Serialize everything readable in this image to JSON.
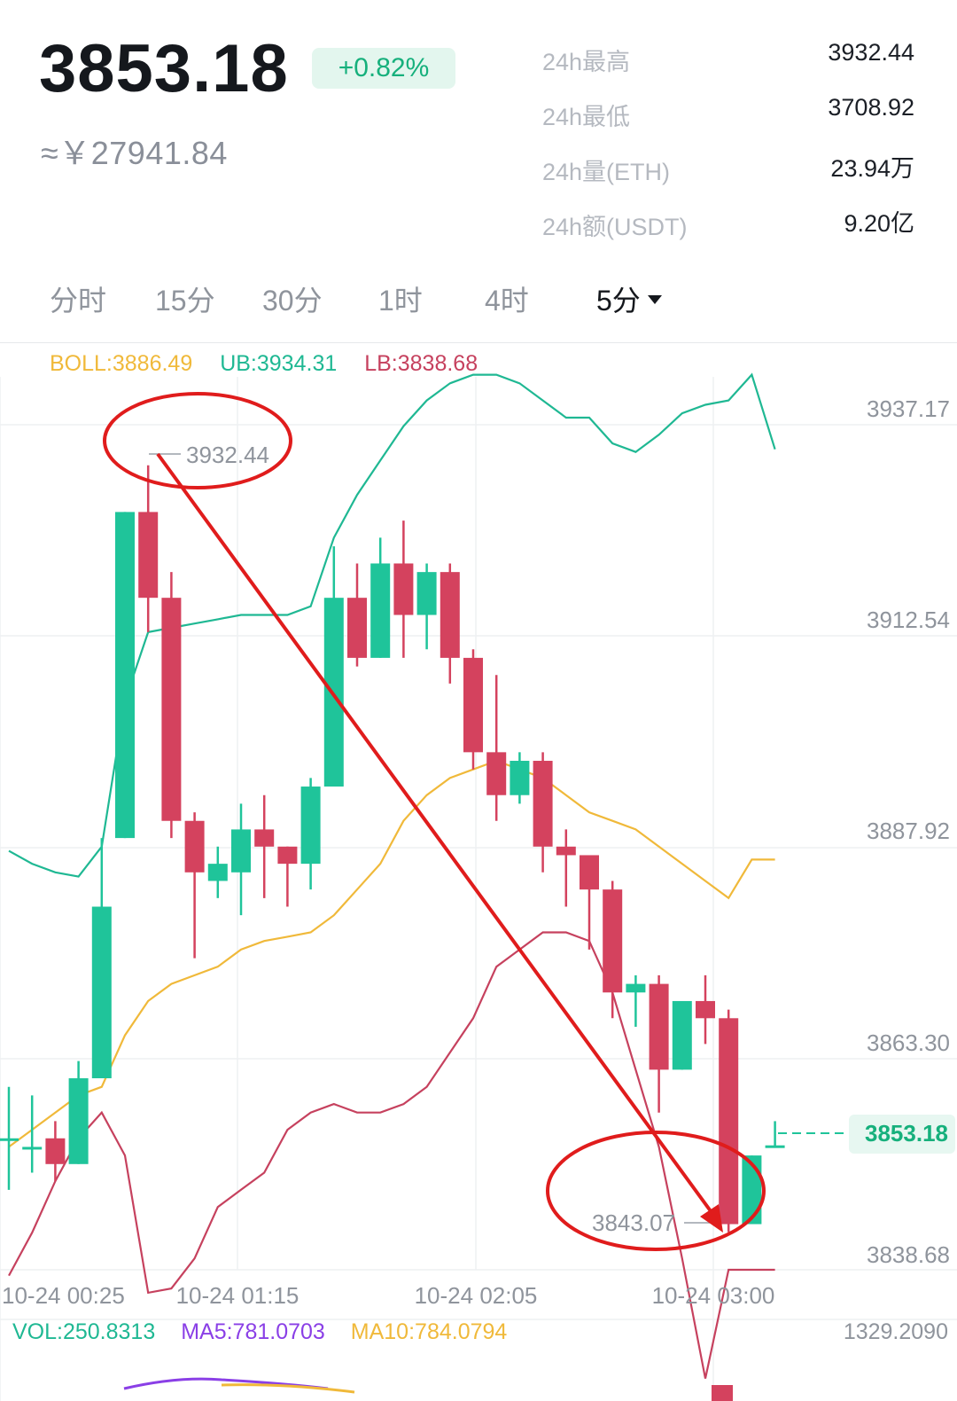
{
  "header": {
    "price": "3853.18",
    "change_pct": "+0.82%",
    "cny_equiv": "≈￥27941.84",
    "stats": [
      {
        "label": "24h最高",
        "value": "3932.44"
      },
      {
        "label": "24h最低",
        "value": "3708.92"
      },
      {
        "label": "24h量(ETH)",
        "value": "23.94万"
      },
      {
        "label": "24h额(USDT)",
        "value": "9.20亿"
      }
    ]
  },
  "tabs": [
    {
      "label": "分时"
    },
    {
      "label": "15分"
    },
    {
      "label": "30分"
    },
    {
      "label": "1时"
    },
    {
      "label": "4时"
    },
    {
      "label": "5分",
      "active": true
    }
  ],
  "indicators": {
    "boll": "BOLL:3886.49",
    "ub": "UB:3934.31",
    "lb": "LB:3838.68"
  },
  "chart": {
    "price_axis": [
      "3937.17",
      "3912.54",
      "3887.92",
      "3863.30",
      "3838.68"
    ],
    "time_axis": [
      "10-24 00:25",
      "10-24 01:15",
      "10-24 02:05",
      "10-24 03:00"
    ],
    "current_price_tag": "3853.18",
    "annotations": {
      "high_label": "3932.44",
      "low_label": "3843.07"
    },
    "colors": {
      "up": "#1fc49a",
      "down": "#d4425e",
      "ub_line": "#1fb893",
      "mid_line": "#f0b93a",
      "lb_line": "#c6415e",
      "annotation": "#e01c1c"
    }
  },
  "chart_data": {
    "type": "candlestick",
    "interval": "5分",
    "y_range": [
      3838.68,
      3937.17
    ],
    "candles": [
      {
        "o": 3854,
        "h": 3860,
        "l": 3848,
        "c": 3854
      },
      {
        "o": 3853,
        "h": 3859,
        "l": 3850,
        "c": 3853
      },
      {
        "o": 3854,
        "h": 3856,
        "l": 3849,
        "c": 3851
      },
      {
        "o": 3851,
        "h": 3863,
        "l": 3851,
        "c": 3861
      },
      {
        "o": 3861,
        "h": 3889,
        "l": 3861,
        "c": 3881
      },
      {
        "o": 3889,
        "h": 3927,
        "l": 3889,
        "c": 3927
      },
      {
        "o": 3927,
        "h": 3932.44,
        "l": 3913,
        "c": 3917
      },
      {
        "o": 3917,
        "h": 3920,
        "l": 3889,
        "c": 3891
      },
      {
        "o": 3891,
        "h": 3892,
        "l": 3875,
        "c": 3885
      },
      {
        "o": 3884,
        "h": 3888,
        "l": 3882,
        "c": 3886
      },
      {
        "o": 3885,
        "h": 3893,
        "l": 3880,
        "c": 3890
      },
      {
        "o": 3890,
        "h": 3894,
        "l": 3882,
        "c": 3888
      },
      {
        "o": 3888,
        "h": 3888,
        "l": 3881,
        "c": 3886
      },
      {
        "o": 3886,
        "h": 3896,
        "l": 3883,
        "c": 3895
      },
      {
        "o": 3895,
        "h": 3923,
        "l": 3895,
        "c": 3917
      },
      {
        "o": 3917,
        "h": 3921,
        "l": 3909,
        "c": 3910
      },
      {
        "o": 3910,
        "h": 3924,
        "l": 3910,
        "c": 3921
      },
      {
        "o": 3921,
        "h": 3926,
        "l": 3910,
        "c": 3915
      },
      {
        "o": 3915,
        "h": 3921,
        "l": 3911,
        "c": 3920
      },
      {
        "o": 3920,
        "h": 3921,
        "l": 3907,
        "c": 3910
      },
      {
        "o": 3910,
        "h": 3911,
        "l": 3897,
        "c": 3899
      },
      {
        "o": 3899,
        "h": 3908,
        "l": 3891,
        "c": 3894
      },
      {
        "o": 3894,
        "h": 3899,
        "l": 3893,
        "c": 3898
      },
      {
        "o": 3898,
        "h": 3899,
        "l": 3885,
        "c": 3888
      },
      {
        "o": 3888,
        "h": 3890,
        "l": 3881,
        "c": 3887
      },
      {
        "o": 3887,
        "h": 3887,
        "l": 3876,
        "c": 3883
      },
      {
        "o": 3883,
        "h": 3884,
        "l": 3868,
        "c": 3871
      },
      {
        "o": 3871,
        "h": 3873,
        "l": 3867,
        "c": 3872
      },
      {
        "o": 3872,
        "h": 3873,
        "l": 3857,
        "c": 3862
      },
      {
        "o": 3862,
        "h": 3870,
        "l": 3862,
        "c": 3870
      },
      {
        "o": 3870,
        "h": 3873,
        "l": 3865,
        "c": 3868
      },
      {
        "o": 3868,
        "h": 3869,
        "l": 3843.07,
        "c": 3844
      },
      {
        "o": 3844,
        "h": 3852,
        "l": 3844,
        "c": 3852
      },
      {
        "o": 3853,
        "h": 3856,
        "l": 3853,
        "c": 3853.18
      }
    ],
    "ub": [
      3887.5,
      3886,
      3885,
      3884.5,
      3888,
      3905,
      3913,
      3913.5,
      3914,
      3914.5,
      3915,
      3915,
      3915,
      3916,
      3924,
      3929,
      3933,
      3937,
      3940,
      3942,
      3943,
      3943,
      3942,
      3940,
      3938,
      3938,
      3935,
      3934,
      3936,
      3938.5,
      3939.5,
      3940,
      3943,
      3934.31
    ],
    "mid": [
      3853,
      3855,
      3857,
      3859,
      3860,
      3866,
      3870,
      3872,
      3873,
      3874,
      3876,
      3877,
      3877.5,
      3878,
      3880,
      3883,
      3886,
      3891,
      3894,
      3896,
      3897,
      3898,
      3897,
      3896,
      3894,
      3892,
      3891,
      3890,
      3888,
      3886,
      3884,
      3882,
      3886.49,
      3886.49
    ],
    "lb": [
      3838,
      3843,
      3849,
      3854,
      3857,
      3852,
      3836,
      3836.5,
      3840,
      3846,
      3848,
      3850,
      3855,
      3857,
      3858,
      3857,
      3857,
      3858,
      3860,
      3864,
      3868,
      3874,
      3876,
      3878,
      3878,
      3877,
      3871,
      3862,
      3853,
      3840,
      3826,
      3838.68,
      3838.68,
      3838.68
    ],
    "volume": {
      "vol": "VOL:250.8313",
      "ma5": "MA5:781.0703",
      "ma10": "MA10:784.0794",
      "max": "1329.2090"
    }
  }
}
